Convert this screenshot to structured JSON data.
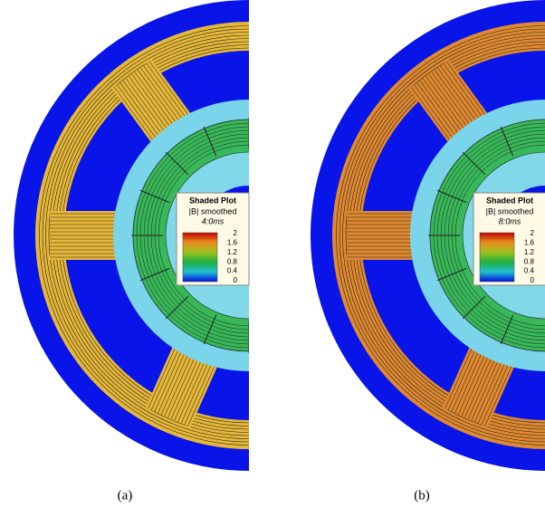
{
  "panels": [
    {
      "label": "(a)",
      "legend": {
        "title": "Shaded Plot",
        "quantity": "|B| smoothed",
        "time": "4:0ms",
        "ticks": [
          2,
          1.6,
          1.2,
          0.8,
          0.4,
          0
        ]
      }
    },
    {
      "label": "(b)",
      "legend": {
        "title": "Shaded Plot",
        "quantity": "|B| smoothed",
        "time": "8:0ms",
        "ticks": [
          2,
          1.6,
          1.2,
          0.8,
          0.4,
          0
        ]
      }
    }
  ]
}
